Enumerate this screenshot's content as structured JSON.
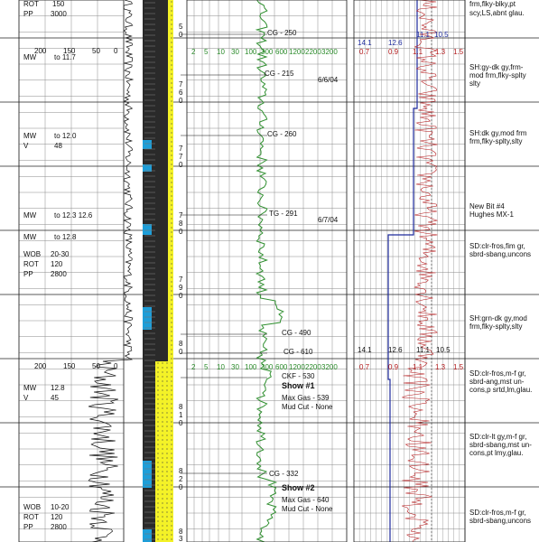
{
  "colors": {
    "gas_curve": "#2f8f2f",
    "dexp_curve": "#b3191b",
    "blue_curve": "#1d2a9c",
    "lith_shale": "#2a2a2a",
    "lith_sand": "#f4f227",
    "lith_blue": "#1e9ed8",
    "grid": "#8a8a8a"
  },
  "drilling_params": [
    {
      "label": "ROT",
      "value": "150"
    },
    {
      "label": "PP",
      "value": "3000"
    },
    {
      "label": "MW",
      "value": "to 11.7"
    },
    {
      "label": "MW",
      "value": "to 12.0"
    },
    {
      "label": "V",
      "value": "48"
    },
    {
      "label": "MW",
      "value": "to 12.3  12.6"
    },
    {
      "label": "MW",
      "value": "to 12.8"
    },
    {
      "label": "WOB",
      "value": "20-30"
    },
    {
      "label": "ROT",
      "value": "120"
    },
    {
      "label": "PP",
      "value": "2800"
    },
    {
      "label": "MW",
      "value": "12.8"
    },
    {
      "label": "V",
      "value": "45"
    },
    {
      "label": "WOB",
      "value": "10-20"
    },
    {
      "label": "ROT",
      "value": "120"
    },
    {
      "label": "PP",
      "value": "2800"
    }
  ],
  "rop_scale": [
    "200",
    "150",
    "50",
    "0"
  ],
  "depth_digits": [
    "5",
    "0",
    "7",
    "6",
    "0",
    "7",
    "7",
    "0",
    "7",
    "8",
    "0",
    "7",
    "9",
    "0",
    "8",
    "0",
    "8",
    "1",
    "0",
    "8",
    "2",
    "0",
    "8",
    "3"
  ],
  "gas_scale": [
    "2",
    "5",
    "10",
    "30",
    "100",
    "300",
    "600",
    "1200",
    "2200",
    "3200"
  ],
  "gas_annotations": [
    "CG - 250",
    "CG - 215",
    "CG - 260",
    "TG - 291",
    "CG - 490",
    "CG - 610",
    "CKF - 530",
    "CG - 332"
  ],
  "dates": [
    "6/6/04",
    "6/7/04"
  ],
  "shows": [
    {
      "title": "Show #1",
      "gas": "Max Gas - 539",
      "cut": "Mud Cut - None"
    },
    {
      "title": "Show #2",
      "gas": "Max Gas - 640",
      "cut": "Mud Cut - None"
    }
  ],
  "dexp_scale": {
    "blue": [
      "14.1",
      "12.6",
      "11.1",
      "10.5"
    ],
    "red": [
      "0.7",
      "0.9",
      "1.1",
      "1.3",
      "1.5"
    ]
  },
  "lithology_notes": [
    "frm,flky-blky,pt",
    "scy,LS,abnt glau.",
    "SH:gy-dk gy,frm-",
    "mod frm,flky-splty",
    "slty",
    "SH:dk gy,mod frm",
    "frm,flky-splty,slty",
    "New Bit #4",
    "Hughes MX-1",
    "SD:clr-fros,fim gr,",
    "sbrd-sbang,uncons",
    "SH:grn-dk gy,mod",
    "frm,flky-splty,slty",
    "SD:clr-fros,m-f gr,",
    "sbrd-ang,mst un-",
    "cons,p srtd,lm,glau.",
    "SD:clr-lt gy,m-f gr,",
    "sbrd-sbang,mst un-",
    "cons,pt lmy,glau.",
    "SD:clr-fros,m-f gr,",
    "sbrd-sbang,uncons"
  ]
}
